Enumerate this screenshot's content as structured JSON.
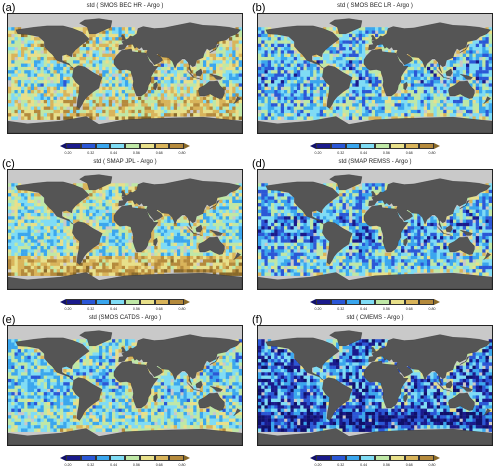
{
  "palette": [
    "#1a1a8c",
    "#2b57d6",
    "#3aa6ee",
    "#7fdcf5",
    "#bfe8a6",
    "#e8e08a",
    "#d9b45a",
    "#b58a3c"
  ],
  "underflow_color": "#10106a",
  "overflow_color": "#8a6a2a",
  "land_color": "#555555",
  "ocean_missing_color": "#c9c9c9",
  "chart_data": [
    {
      "type": "heatmap",
      "panel_letter": "(a)",
      "title": "std ( SMOS BEC HR - Argo )",
      "colorbar_ticks": [
        "0.20",
        "0.32",
        "0.44",
        "0.56",
        "0.68",
        "0.80"
      ],
      "colorbar_range": [
        0.2,
        0.8
      ],
      "seed": 11,
      "base_level": 0.55,
      "southern_band_level": 0.62,
      "tropical_level": 0.5,
      "noise": 0.16
    },
    {
      "type": "heatmap",
      "panel_letter": "(b)",
      "title": "std ( SMOS BEC LR - Argo )",
      "colorbar_ticks": [
        "0.20",
        "0.32",
        "0.44",
        "0.56",
        "0.68",
        "0.80"
      ],
      "colorbar_range": [
        0.2,
        0.8
      ],
      "seed": 23,
      "base_level": 0.44,
      "southern_band_level": 0.46,
      "tropical_level": 0.4,
      "noise": 0.14
    },
    {
      "type": "heatmap",
      "panel_letter": "(c)",
      "title": "std ( SMAP JPL - Argo )",
      "colorbar_ticks": [
        "0.20",
        "0.32",
        "0.44",
        "0.56",
        "0.68",
        "0.80"
      ],
      "colorbar_range": [
        0.2,
        0.8
      ],
      "seed": 37,
      "base_level": 0.5,
      "southern_band_level": 0.68,
      "tropical_level": 0.48,
      "noise": 0.13
    },
    {
      "type": "heatmap",
      "panel_letter": "(d)",
      "title": "std (SMAP REMSS - Argo )",
      "colorbar_ticks": [
        "0.20",
        "0.32",
        "0.44",
        "0.56",
        "0.68",
        "0.80"
      ],
      "colorbar_range": [
        0.2,
        0.8
      ],
      "seed": 41,
      "base_level": 0.42,
      "southern_band_level": 0.44,
      "tropical_level": 0.36,
      "noise": 0.15
    },
    {
      "type": "heatmap",
      "panel_letter": "(e)",
      "title": "std (SMOS CATDS - Argo )",
      "colorbar_ticks": [
        "0.20",
        "0.32",
        "0.44",
        "0.56",
        "0.68",
        "0.80"
      ],
      "colorbar_range": [
        0.2,
        0.8
      ],
      "seed": 53,
      "base_level": 0.46,
      "southern_band_level": 0.5,
      "tropical_level": 0.44,
      "noise": 0.13
    },
    {
      "type": "heatmap",
      "panel_letter": "(f)",
      "title": "std ( CMEMS - Argo )",
      "colorbar_ticks": [
        "0.20",
        "0.32",
        "0.44",
        "0.56",
        "0.68",
        "0.80"
      ],
      "colorbar_range": [
        0.2,
        0.8
      ],
      "seed": 67,
      "base_level": 0.34,
      "southern_band_level": 0.24,
      "tropical_level": 0.34,
      "noise": 0.16
    }
  ]
}
